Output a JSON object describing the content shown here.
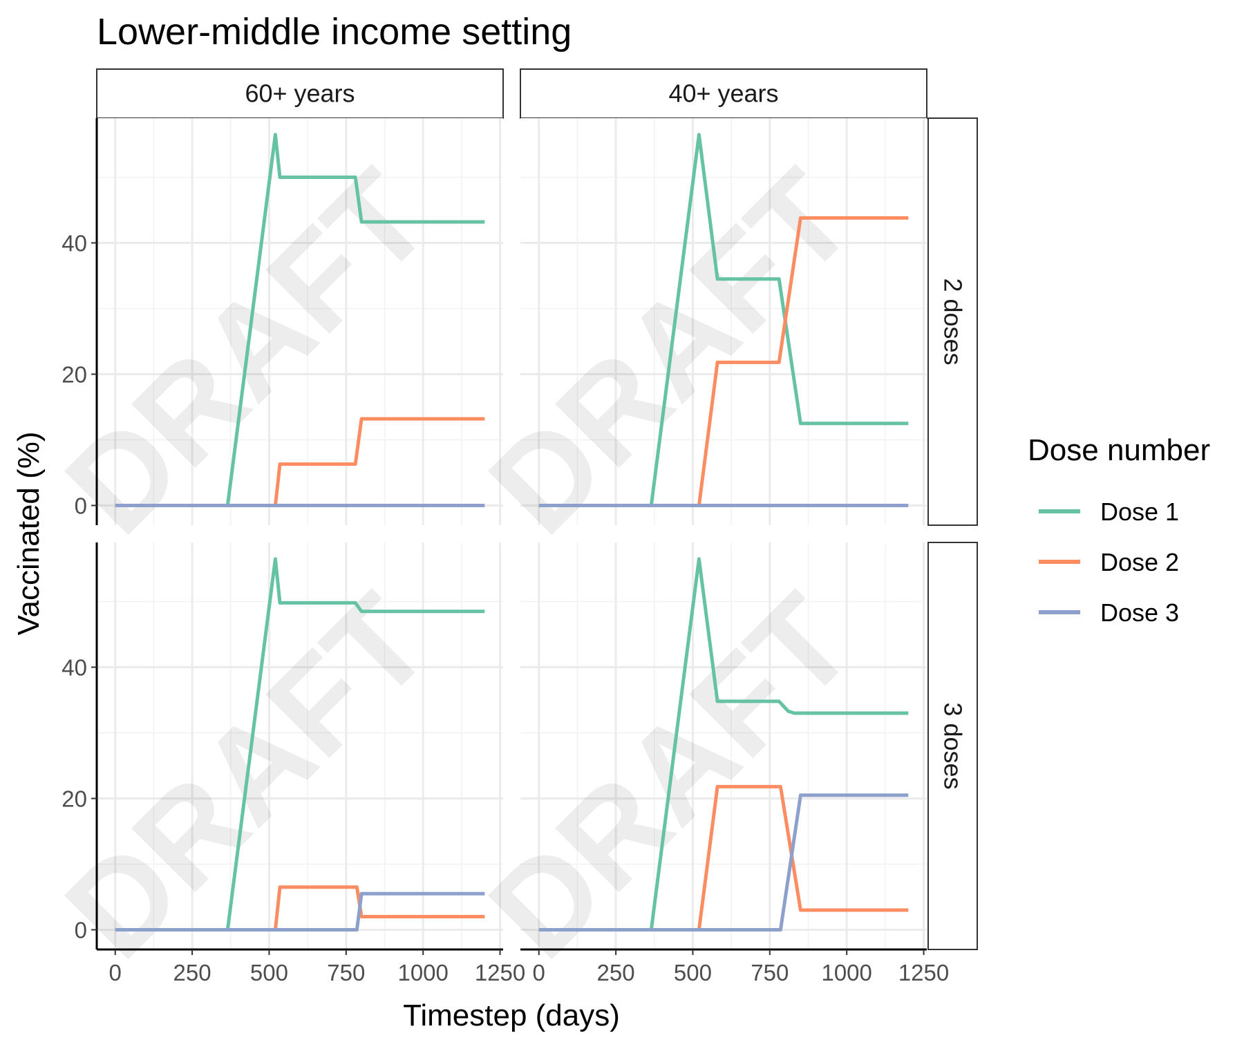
{
  "title": "Lower-middle income setting",
  "watermark": "DRAFT",
  "chart_data": {
    "type": "line",
    "title": "Lower-middle income setting",
    "xlabel": "Timestep (days)",
    "ylabel": "Vaccinated (%)",
    "xlim": [
      -60,
      1260
    ],
    "ylim": [
      -3,
      59
    ],
    "x_ticks": [
      0,
      250,
      500,
      750,
      1000,
      1250
    ],
    "y_ticks": [
      0,
      20,
      40
    ],
    "grid": true,
    "legend": {
      "title": "Dose number",
      "position": "right",
      "entries": [
        {
          "name": "Dose 1",
          "color": "#66C2A5"
        },
        {
          "name": "Dose 2",
          "color": "#FC8D62"
        },
        {
          "name": "Dose 3",
          "color": "#8DA0CB"
        }
      ]
    },
    "facet_columns": [
      "60+ years",
      "40+ years"
    ],
    "facet_rows": [
      "2 doses",
      "3 doses"
    ],
    "panels": [
      {
        "column": "60+ years",
        "row": "2 doses",
        "series": [
          {
            "name": "Dose 1",
            "color": "#66C2A5",
            "points": [
              [
                0,
                0
              ],
              [
                365,
                0
              ],
              [
                520,
                56.5
              ],
              [
                535,
                50
              ],
              [
                780,
                50
              ],
              [
                800,
                43.2
              ],
              [
                1200,
                43.2
              ]
            ]
          },
          {
            "name": "Dose 2",
            "color": "#FC8D62",
            "points": [
              [
                0,
                0
              ],
              [
                520,
                0
              ],
              [
                535,
                6.3
              ],
              [
                780,
                6.3
              ],
              [
                800,
                13.2
              ],
              [
                1200,
                13.2
              ]
            ]
          },
          {
            "name": "Dose 3",
            "color": "#8DA0CB",
            "points": [
              [
                0,
                0
              ],
              [
                1200,
                0
              ]
            ]
          }
        ]
      },
      {
        "column": "40+ years",
        "row": "2 doses",
        "series": [
          {
            "name": "Dose 1",
            "color": "#66C2A5",
            "points": [
              [
                0,
                0
              ],
              [
                365,
                0
              ],
              [
                520,
                56.5
              ],
              [
                580,
                34.5
              ],
              [
                780,
                34.5
              ],
              [
                850,
                12.5
              ],
              [
                1200,
                12.5
              ]
            ]
          },
          {
            "name": "Dose 2",
            "color": "#FC8D62",
            "points": [
              [
                0,
                0
              ],
              [
                520,
                0
              ],
              [
                580,
                21.8
              ],
              [
                780,
                21.8
              ],
              [
                850,
                43.8
              ],
              [
                1200,
                43.8
              ]
            ]
          },
          {
            "name": "Dose 3",
            "color": "#8DA0CB",
            "points": [
              [
                0,
                0
              ],
              [
                1200,
                0
              ]
            ]
          }
        ]
      },
      {
        "column": "60+ years",
        "row": "3 doses",
        "series": [
          {
            "name": "Dose 1",
            "color": "#66C2A5",
            "points": [
              [
                0,
                0
              ],
              [
                365,
                0
              ],
              [
                520,
                56.5
              ],
              [
                535,
                49.8
              ],
              [
                780,
                49.8
              ],
              [
                800,
                48.5
              ],
              [
                1200,
                48.5
              ]
            ]
          },
          {
            "name": "Dose 2",
            "color": "#FC8D62",
            "points": [
              [
                0,
                0
              ],
              [
                520,
                0
              ],
              [
                535,
                6.5
              ],
              [
                785,
                6.5
              ],
              [
                800,
                2
              ],
              [
                1200,
                2
              ]
            ]
          },
          {
            "name": "Dose 3",
            "color": "#8DA0CB",
            "points": [
              [
                0,
                0
              ],
              [
                785,
                0
              ],
              [
                800,
                5.5
              ],
              [
                1200,
                5.5
              ]
            ]
          }
        ]
      },
      {
        "column": "40+ years",
        "row": "3 doses",
        "series": [
          {
            "name": "Dose 1",
            "color": "#66C2A5",
            "points": [
              [
                0,
                0
              ],
              [
                365,
                0
              ],
              [
                520,
                56.5
              ],
              [
                580,
                34.8
              ],
              [
                780,
                34.8
              ],
              [
                810,
                33.3
              ],
              [
                830,
                33
              ],
              [
                1200,
                33
              ]
            ]
          },
          {
            "name": "Dose 2",
            "color": "#FC8D62",
            "points": [
              [
                0,
                0
              ],
              [
                520,
                0
              ],
              [
                580,
                21.8
              ],
              [
                785,
                21.8
              ],
              [
                850,
                3
              ],
              [
                1200,
                3
              ]
            ]
          },
          {
            "name": "Dose 3",
            "color": "#8DA0CB",
            "points": [
              [
                0,
                0
              ],
              [
                785,
                0
              ],
              [
                850,
                20.5
              ],
              [
                1200,
                20.5
              ]
            ]
          }
        ]
      }
    ]
  }
}
